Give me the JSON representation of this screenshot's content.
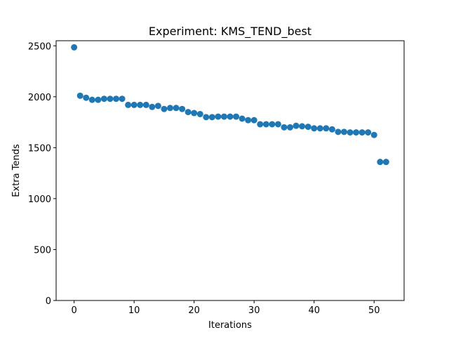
{
  "chart_data": {
    "type": "scatter",
    "title": "Experiment: KMS_TEND_best",
    "xlabel": "Iterations",
    "ylabel": "Extra Tends",
    "xlim": [
      -3,
      55
    ],
    "ylim": [
      0,
      2550
    ],
    "xticks": [
      0,
      10,
      20,
      30,
      40,
      50
    ],
    "yticks": [
      0,
      500,
      1000,
      1500,
      2000,
      2500
    ],
    "grid": false,
    "marker_color": "#1f77b4",
    "x": [
      0,
      1,
      2,
      3,
      4,
      5,
      6,
      7,
      8,
      9,
      10,
      11,
      12,
      13,
      14,
      15,
      16,
      17,
      18,
      19,
      20,
      21,
      22,
      23,
      24,
      25,
      26,
      27,
      28,
      29,
      30,
      31,
      32,
      33,
      34,
      35,
      36,
      37,
      38,
      39,
      40,
      41,
      42,
      43,
      44,
      45,
      46,
      47,
      48,
      49,
      50,
      51,
      52
    ],
    "y": [
      2485,
      2010,
      1990,
      1970,
      1970,
      1980,
      1980,
      1980,
      1980,
      1920,
      1920,
      1920,
      1920,
      1900,
      1910,
      1880,
      1890,
      1890,
      1880,
      1850,
      1840,
      1830,
      1800,
      1800,
      1805,
      1805,
      1805,
      1805,
      1785,
      1770,
      1770,
      1730,
      1730,
      1730,
      1730,
      1700,
      1700,
      1715,
      1710,
      1705,
      1690,
      1690,
      1690,
      1680,
      1655,
      1655,
      1650,
      1650,
      1650,
      1650,
      1625,
      1360,
      1360
    ]
  }
}
